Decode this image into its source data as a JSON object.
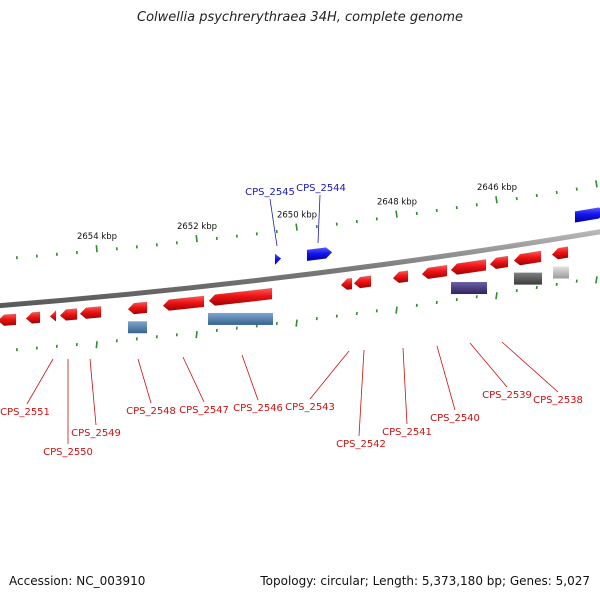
{
  "title": "Colwellia psychrerythraea 34H, complete genome",
  "footer": {
    "accession": "Accession: NC_003910",
    "summary": "Topology: circular; Length: 5,373,180 bp; Genes: 5,027"
  },
  "colors": {
    "backbone": "#8a8a8a",
    "tick": "#2e8b2e",
    "gene_forward": "#1414e6",
    "gene_reverse": "#e61414",
    "label_reverse": "#cc1111",
    "label_forward": "#1a1ab0",
    "protein_blue": "#4f81b4",
    "protein_purple": "#4f3f86",
    "protein_gray": "#5a5a5a",
    "protein_light": "#bcbcbc"
  },
  "scale": {
    "major_labels": [
      "2654 kbp",
      "2652 kbp",
      "2650 kbp",
      "2648 kbp",
      "2646 kbp"
    ]
  },
  "genes_forward": [
    {
      "id": "CPS_2545"
    },
    {
      "id": "CPS_2544"
    }
  ],
  "genes_reverse": [
    {
      "id": "CPS_2551"
    },
    {
      "id": "CPS_2550"
    },
    {
      "id": "CPS_2549"
    },
    {
      "id": "CPS_2548"
    },
    {
      "id": "CPS_2547"
    },
    {
      "id": "CPS_2546"
    },
    {
      "id": "CPS_2543"
    },
    {
      "id": "CPS_2542"
    },
    {
      "id": "CPS_2541"
    },
    {
      "id": "CPS_2540"
    },
    {
      "id": "CPS_2539"
    },
    {
      "id": "CPS_2538"
    }
  ]
}
